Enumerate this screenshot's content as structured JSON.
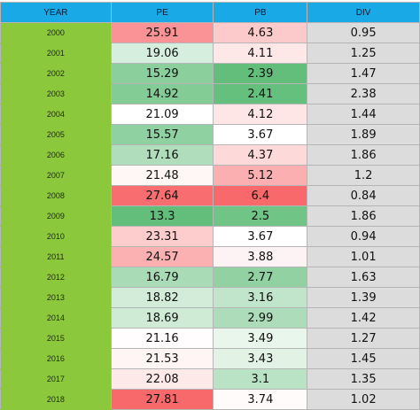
{
  "table": {
    "headers": [
      "YEAR",
      "PE",
      "PB",
      "DIV"
    ],
    "rows": [
      {
        "year": "2000",
        "pe": "25.91",
        "pb": "4.63",
        "div": "0.95"
      },
      {
        "year": "2001",
        "pe": "19.06",
        "pb": "4.11",
        "div": "1.25"
      },
      {
        "year": "2002",
        "pe": "15.29",
        "pb": "2.39",
        "div": "1.47"
      },
      {
        "year": "2003",
        "pe": "14.92",
        "pb": "2.41",
        "div": "2.38"
      },
      {
        "year": "2004",
        "pe": "21.09",
        "pb": "4.12",
        "div": "1.44"
      },
      {
        "year": "2005",
        "pe": "15.57",
        "pb": "3.67",
        "div": "1.89"
      },
      {
        "year": "2006",
        "pe": "17.16",
        "pb": "4.37",
        "div": "1.86"
      },
      {
        "year": "2007",
        "pe": "21.48",
        "pb": "5.12",
        "div": "1.2"
      },
      {
        "year": "2008",
        "pe": "27.64",
        "pb": "6.4",
        "div": "0.84"
      },
      {
        "year": "2009",
        "pe": "13.3",
        "pb": "2.5",
        "div": "1.86"
      },
      {
        "year": "2010",
        "pe": "23.31",
        "pb": "3.67",
        "div": "0.94"
      },
      {
        "year": "2011",
        "pe": "24.57",
        "pb": "3.88",
        "div": "1.01"
      },
      {
        "year": "2012",
        "pe": "16.79",
        "pb": "2.77",
        "div": "1.63"
      },
      {
        "year": "2013",
        "pe": "18.82",
        "pb": "3.16",
        "div": "1.39"
      },
      {
        "year": "2014",
        "pe": "18.69",
        "pb": "2.99",
        "div": "1.42"
      },
      {
        "year": "2015",
        "pe": "21.16",
        "pb": "3.49",
        "div": "1.27"
      },
      {
        "year": "2016",
        "pe": "21.53",
        "pb": "3.43",
        "div": "1.45"
      },
      {
        "year": "2017",
        "pe": "22.08",
        "pb": "3.1",
        "div": "1.35"
      },
      {
        "year": "2018",
        "pe": "27.81",
        "pb": "3.74",
        "div": "1.02"
      }
    ]
  },
  "colors": {
    "header_bg": "#19a9e6",
    "year_bg": "#8cc83c",
    "div_bg": "#dcdcdc",
    "scale_low": "#63be7b",
    "scale_mid": "#ffffff",
    "scale_high": "#f8696b"
  }
}
